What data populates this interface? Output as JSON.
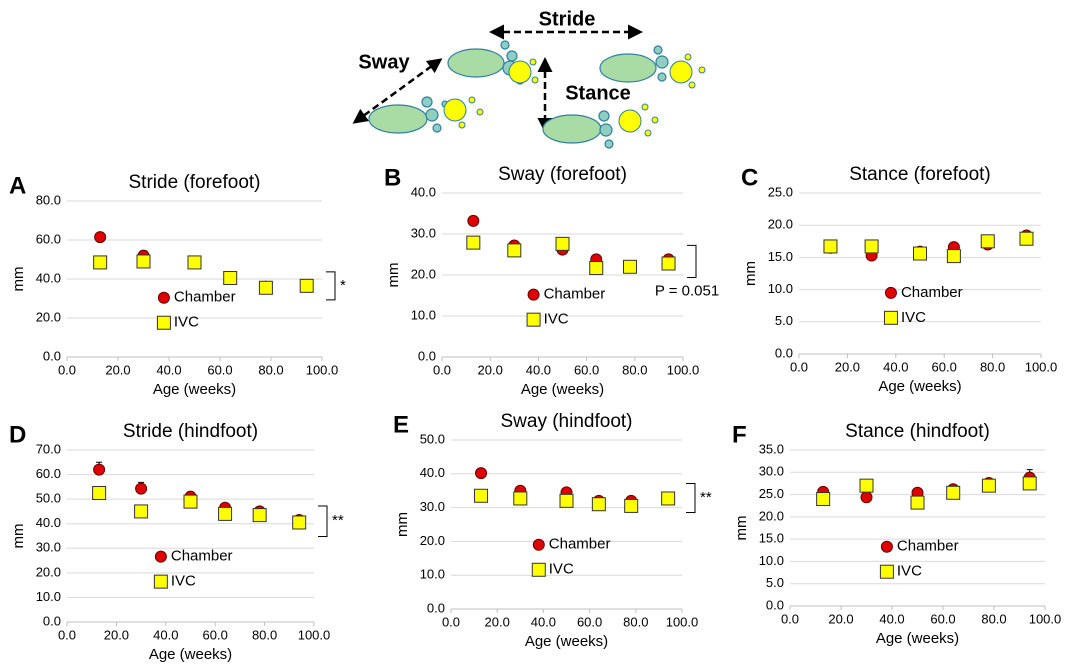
{
  "diagram": {
    "labels": [
      "Stride",
      "Sway",
      "Stance"
    ]
  },
  "chart_data": [
    {
      "type": "scatter",
      "panel": "A",
      "title": "Stride (forefoot)",
      "x_label": "Age (weeks)",
      "y_label": "mm",
      "x": [
        13,
        30,
        50,
        64,
        78,
        94
      ],
      "series": [
        {
          "name": "Chamber",
          "color": "#e00000",
          "marker": "circle",
          "values": [
            61.5,
            52.0,
            48.5,
            41.0,
            36.0,
            36.5
          ],
          "errors": [
            2.0,
            2.5,
            1.5,
            1.5,
            1.5,
            1.5
          ]
        },
        {
          "name": "IVC",
          "color": "#ffff00",
          "marker": "square",
          "values": [
            48.5,
            49.0,
            48.5,
            40.5,
            35.5,
            36.5
          ],
          "errors": [
            2.0,
            4.0,
            2.0,
            2.0,
            2.0,
            1.5
          ]
        }
      ],
      "xlim": [
        0,
        100
      ],
      "xticks": [
        {
          "value": 0,
          "label": "0.0"
        },
        {
          "value": 20,
          "label": "20.0"
        },
        {
          "value": 40,
          "label": "40.0"
        },
        {
          "value": 60,
          "label": "60.0"
        },
        {
          "value": 80,
          "label": "80.0"
        },
        {
          "value": 100,
          "label": "100.0"
        }
      ],
      "ylim": [
        0,
        80
      ],
      "yticks": [
        {
          "value": 0,
          "label": "0.0"
        },
        {
          "value": 20,
          "label": "20.0"
        },
        {
          "value": 40,
          "label": "40.0"
        },
        {
          "value": 60,
          "label": "60.0"
        },
        {
          "value": 80,
          "label": "80.0"
        }
      ],
      "grid": true,
      "legend": "center",
      "annotation": "*"
    },
    {
      "type": "scatter",
      "panel": "B",
      "title": "Sway (forefoot)",
      "x_label": "Age (weeks)",
      "y_label": "mm",
      "x": [
        13,
        30,
        50,
        64,
        78,
        94
      ],
      "series": [
        {
          "name": "Chamber",
          "color": "#e00000",
          "marker": "circle",
          "values": [
            33.2,
            27.2,
            26.2,
            23.8,
            22.0,
            23.8
          ],
          "errors": [
            1.2,
            1.0,
            1.0,
            0.8,
            0.8,
            0.8
          ]
        },
        {
          "name": "IVC",
          "color": "#ffff00",
          "marker": "square",
          "values": [
            27.9,
            26.0,
            27.6,
            21.7,
            22.0,
            22.8
          ],
          "errors": [
            0.8,
            1.5,
            1.5,
            1.5,
            0.8,
            1.5
          ]
        }
      ],
      "xlim": [
        0,
        100
      ],
      "xticks": [
        {
          "value": 0,
          "label": "0.0"
        },
        {
          "value": 20,
          "label": "20.0"
        },
        {
          "value": 40,
          "label": "40.0"
        },
        {
          "value": 60,
          "label": "60.0"
        },
        {
          "value": 80,
          "label": "80.0"
        },
        {
          "value": 100,
          "label": "100.0"
        }
      ],
      "ylim": [
        0,
        40
      ],
      "yticks": [
        {
          "value": 0,
          "label": "0.0"
        },
        {
          "value": 10,
          "label": "10.0"
        },
        {
          "value": 20,
          "label": "20.0"
        },
        {
          "value": 30,
          "label": "30.0"
        },
        {
          "value": 40,
          "label": "40.0"
        }
      ],
      "grid": true,
      "legend": "center",
      "annotation": "P = 0.051"
    },
    {
      "type": "scatter",
      "panel": "C",
      "title": "Stance (forefoot)",
      "x_label": "Age (weeks)",
      "y_label": "mm",
      "x": [
        13,
        30,
        50,
        64,
        78,
        94
      ],
      "series": [
        {
          "name": "Chamber",
          "color": "#e00000",
          "marker": "circle",
          "values": [
            16.5,
            15.3,
            15.9,
            16.6,
            17.0,
            18.4
          ],
          "errors": [
            0.5,
            0.5,
            0.5,
            0.5,
            0.5,
            0.6
          ]
        },
        {
          "name": "IVC",
          "color": "#ffff00",
          "marker": "square",
          "values": [
            16.7,
            16.7,
            15.6,
            15.2,
            17.5,
            17.9
          ],
          "errors": [
            0.5,
            0.6,
            0.5,
            0.5,
            0.5,
            0.6
          ]
        }
      ],
      "xlim": [
        0,
        100
      ],
      "xticks": [
        {
          "value": 0,
          "label": "0.0"
        },
        {
          "value": 20,
          "label": "20.0"
        },
        {
          "value": 40,
          "label": "40.0"
        },
        {
          "value": 60,
          "label": "60.0"
        },
        {
          "value": 80,
          "label": "80.0"
        },
        {
          "value": 100,
          "label": "100.0"
        }
      ],
      "ylim": [
        0,
        25
      ],
      "yticks": [
        {
          "value": 0,
          "label": "0.0"
        },
        {
          "value": 5,
          "label": "5.0"
        },
        {
          "value": 10,
          "label": "10.0"
        },
        {
          "value": 15,
          "label": "15.0"
        },
        {
          "value": 20,
          "label": "20.0"
        },
        {
          "value": 25,
          "label": "25.0"
        }
      ],
      "grid": true,
      "legend": "center"
    },
    {
      "type": "scatter",
      "panel": "D",
      "title": "Stride (hindfoot)",
      "x_label": "Age (weeks)",
      "y_label": "mm",
      "x": [
        13,
        30,
        50,
        64,
        78,
        94
      ],
      "series": [
        {
          "name": "Chamber",
          "color": "#e00000",
          "marker": "circle",
          "values": [
            62.0,
            54.3,
            51.0,
            46.5,
            45.0,
            41.5
          ],
          "errors": [
            3.0,
            2.5,
            2.0,
            1.5,
            1.0,
            1.0
          ]
        },
        {
          "name": "IVC",
          "color": "#ffff00",
          "marker": "square",
          "values": [
            52.5,
            45.0,
            49.0,
            44.0,
            43.5,
            40.5
          ],
          "errors": [
            2.0,
            1.5,
            2.0,
            1.5,
            1.5,
            1.5
          ]
        }
      ],
      "xlim": [
        0,
        100
      ],
      "xticks": [
        {
          "value": 0,
          "label": "0.0"
        },
        {
          "value": 20,
          "label": "20.0"
        },
        {
          "value": 40,
          "label": "40.0"
        },
        {
          "value": 60,
          "label": "60.0"
        },
        {
          "value": 80,
          "label": "80.0"
        },
        {
          "value": 100,
          "label": "100.0"
        }
      ],
      "ylim": [
        0,
        70
      ],
      "yticks": [
        {
          "value": 0,
          "label": "0.0"
        },
        {
          "value": 10,
          "label": "10.0"
        },
        {
          "value": 20,
          "label": "20.0"
        },
        {
          "value": 30,
          "label": "30.0"
        },
        {
          "value": 40,
          "label": "40.0"
        },
        {
          "value": 50,
          "label": "50.0"
        },
        {
          "value": 60,
          "label": "60.0"
        },
        {
          "value": 70,
          "label": "70.0"
        }
      ],
      "grid": true,
      "legend": "center",
      "annotation": "**"
    },
    {
      "type": "scatter",
      "panel": "E",
      "title": "Sway (hindfoot)",
      "x_label": "Age (weeks)",
      "y_label": "mm",
      "x": [
        13,
        30,
        50,
        64,
        78,
        94
      ],
      "series": [
        {
          "name": "Chamber",
          "color": "#e00000",
          "marker": "circle",
          "values": [
            40.2,
            35.0,
            34.5,
            32.0,
            32.0,
            33.0
          ],
          "errors": [
            0.8,
            1.0,
            0.8,
            0.8,
            0.8,
            0.8
          ]
        },
        {
          "name": "IVC",
          "color": "#ffff00",
          "marker": "square",
          "values": [
            33.5,
            32.7,
            32.0,
            31.0,
            30.5,
            32.7
          ],
          "errors": [
            0.8,
            1.0,
            0.8,
            0.8,
            0.8,
            0.8
          ]
        }
      ],
      "xlim": [
        0,
        100
      ],
      "xticks": [
        {
          "value": 0,
          "label": "0.0"
        },
        {
          "value": 20,
          "label": "20.0"
        },
        {
          "value": 40,
          "label": "40.0"
        },
        {
          "value": 60,
          "label": "60.0"
        },
        {
          "value": 80,
          "label": "80.0"
        },
        {
          "value": 100,
          "label": "100.0"
        }
      ],
      "ylim": [
        0,
        50
      ],
      "yticks": [
        {
          "value": 0,
          "label": "0.0"
        },
        {
          "value": 10,
          "label": "10.0"
        },
        {
          "value": 20,
          "label": "20.0"
        },
        {
          "value": 30,
          "label": "30.0"
        },
        {
          "value": 40,
          "label": "40.0"
        },
        {
          "value": 50,
          "label": "50.0"
        }
      ],
      "grid": true,
      "legend": "center",
      "annotation": "**"
    },
    {
      "type": "scatter",
      "panel": "F",
      "title": "Stance (hindfoot)",
      "x_label": "Age (weeks)",
      "y_label": "mm",
      "x": [
        13,
        30,
        50,
        64,
        78,
        94
      ],
      "series": [
        {
          "name": "Chamber",
          "color": "#e00000",
          "marker": "circle",
          "values": [
            25.6,
            24.4,
            25.4,
            26.2,
            27.6,
            28.8
          ],
          "errors": [
            0.5,
            0.5,
            0.5,
            1.0,
            0.8,
            1.8
          ]
        },
        {
          "name": "IVC",
          "color": "#ffff00",
          "marker": "square",
          "values": [
            24.0,
            27.0,
            23.2,
            25.4,
            27.0,
            27.5
          ],
          "errors": [
            0.5,
            0.5,
            0.8,
            0.8,
            0.8,
            1.0
          ]
        }
      ],
      "xlim": [
        0,
        100
      ],
      "xticks": [
        {
          "value": 0,
          "label": "0.0"
        },
        {
          "value": 20,
          "label": "20.0"
        },
        {
          "value": 40,
          "label": "40.0"
        },
        {
          "value": 60,
          "label": "60.0"
        },
        {
          "value": 80,
          "label": "80.0"
        },
        {
          "value": 100,
          "label": "100.0"
        }
      ],
      "ylim": [
        0,
        35
      ],
      "yticks": [
        {
          "value": 0,
          "label": "0.0"
        },
        {
          "value": 5,
          "label": "5.0"
        },
        {
          "value": 10,
          "label": "10.0"
        },
        {
          "value": 15,
          "label": "15.0"
        },
        {
          "value": 20,
          "label": "20.0"
        },
        {
          "value": 25,
          "label": "25.0"
        },
        {
          "value": 30,
          "label": "30.0"
        },
        {
          "value": 35,
          "label": "35.0"
        }
      ],
      "grid": true,
      "legend": "center"
    }
  ]
}
